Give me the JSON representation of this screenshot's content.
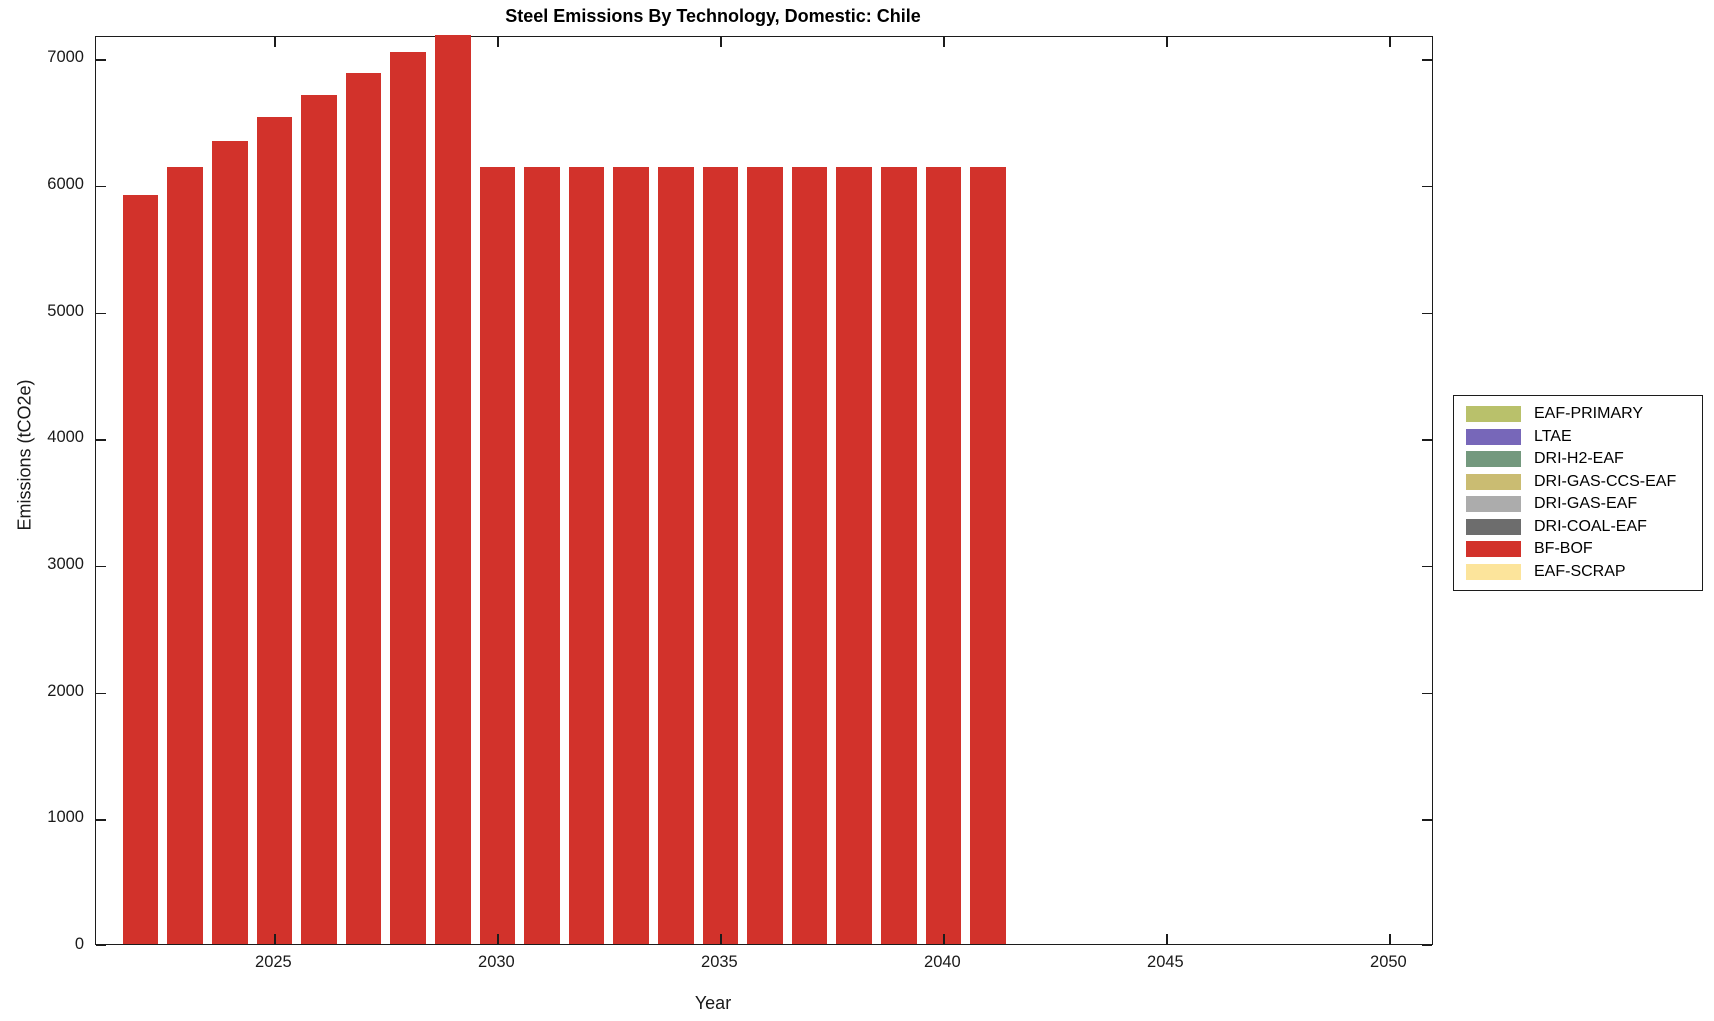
{
  "chart_data": {
    "type": "bar",
    "title": "Steel Emissions By Technology, Domestic: Chile",
    "xlabel": "Year",
    "ylabel": "Emissions (tCO2e)",
    "xlim": [
      2021,
      2051
    ],
    "ylim": [
      0,
      7175
    ],
    "x_ticks": [
      2025,
      2030,
      2035,
      2040,
      2045,
      2050
    ],
    "y_ticks": [
      0,
      1000,
      2000,
      3000,
      4000,
      5000,
      6000,
      7000
    ],
    "grid": false,
    "legend_position": "right-outside",
    "frame_color": "#1c1c1c",
    "legend": [
      {
        "label": "EAF-PRIMARY",
        "color": "#b9c16b"
      },
      {
        "label": "LTAE",
        "color": "#7767b9"
      },
      {
        "label": "DRI-H2-EAF",
        "color": "#74997e"
      },
      {
        "label": "DRI-GAS-CCS-EAF",
        "color": "#cabc72"
      },
      {
        "label": "DRI-GAS-EAF",
        "color": "#acacac"
      },
      {
        "label": "DRI-COAL-EAF",
        "color": "#6d6d6d"
      },
      {
        "label": "BF-BOF",
        "color": "#d2322b"
      },
      {
        "label": "EAF-SCRAP",
        "color": "#fce49b"
      }
    ],
    "series": [
      {
        "name": "BF-BOF",
        "color": "#d2322b",
        "x": [
          2022,
          2023,
          2024,
          2025,
          2026,
          2027,
          2028,
          2029,
          2030,
          2031,
          2032,
          2033,
          2034,
          2035,
          2036,
          2037,
          2038,
          2039,
          2040,
          2041
        ],
        "values": [
          5910,
          6130,
          6335,
          6530,
          6705,
          6875,
          7040,
          7175,
          6130,
          6130,
          6130,
          6130,
          6130,
          6130,
          6130,
          6130,
          6130,
          6130,
          6130,
          6130
        ]
      }
    ]
  }
}
